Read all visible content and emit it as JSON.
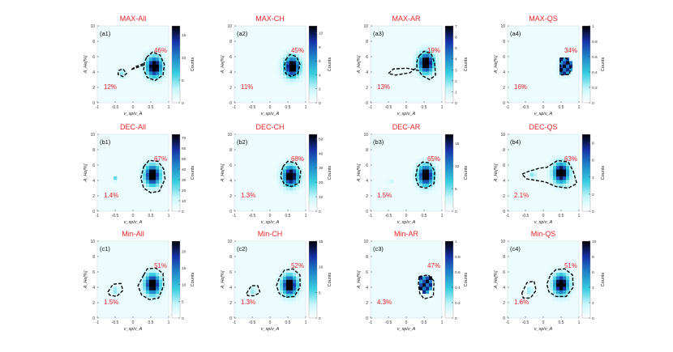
{
  "figure": {
    "colorbar_label": "Counts",
    "xlabel": "v_sp/v_A",
    "ylabel": "A_He[%]",
    "xticks": [
      "-1",
      "-0.5",
      "0",
      "0.5",
      "1"
    ],
    "yticks": [
      "0",
      "2",
      "4",
      "6",
      "8",
      "10"
    ],
    "xlim": [
      -1,
      1
    ],
    "ylim": [
      0,
      10
    ]
  },
  "chart_data": [
    {
      "type": "heatmap",
      "id": "a1",
      "panel_label": "(a1)",
      "title": "MAX-All",
      "colorbar_ticks": [
        "0",
        "5",
        "10",
        "15"
      ],
      "cbar_max": 17,
      "peak": {
        "x": 0.6,
        "y": 4.7
      },
      "core_peak_pct": "46%",
      "secondary_peak_pct": "12%",
      "secondary": {
        "x": -0.3,
        "y": 3.8
      },
      "core_contour": [
        [
          0.38,
          5.9
        ],
        [
          0.55,
          6.6
        ],
        [
          0.76,
          6.2
        ],
        [
          0.88,
          5.0
        ],
        [
          0.84,
          3.6
        ],
        [
          0.62,
          2.9
        ],
        [
          0.4,
          3.3
        ],
        [
          0.3,
          4.3
        ],
        [
          0.32,
          5.2
        ]
      ],
      "secondary_contour": [
        [
          -0.4,
          4.2
        ],
        [
          -0.28,
          4.4
        ],
        [
          -0.18,
          3.8
        ],
        [
          -0.28,
          3.4
        ],
        [
          -0.42,
          3.7
        ]
      ],
      "rim_contour": [
        [
          0.3,
          4.9
        ],
        [
          0.12,
          4.6
        ],
        [
          -0.06,
          4.3
        ],
        [
          0.08,
          4.7
        ],
        [
          0.3,
          5.1
        ]
      ]
    },
    {
      "type": "heatmap",
      "id": "a2",
      "panel_label": "(a2)",
      "title": "MAX-CH",
      "colorbar_ticks": [
        "0",
        "2",
        "4",
        "6",
        "8",
        "10"
      ],
      "cbar_max": 11,
      "peak": {
        "x": 0.62,
        "y": 4.7
      },
      "core_peak_pct": "45%",
      "secondary_peak_pct": "11%",
      "core_contour": [
        [
          0.44,
          5.6
        ],
        [
          0.56,
          6.3
        ],
        [
          0.74,
          6.0
        ],
        [
          0.84,
          5.0
        ],
        [
          0.78,
          3.8
        ],
        [
          0.6,
          3.4
        ],
        [
          0.44,
          3.8
        ],
        [
          0.4,
          4.7
        ]
      ]
    },
    {
      "type": "heatmap",
      "id": "a3",
      "panel_label": "(a3)",
      "title": "MAX-AR",
      "colorbar_ticks": [
        "0",
        "1",
        "2",
        "3",
        "4",
        "5",
        "6",
        "7"
      ],
      "cbar_max": 7,
      "peak": {
        "x": 0.56,
        "y": 5.2
      },
      "core_peak_pct": "19%",
      "secondary_peak_pct": "13%",
      "core_contour": [
        [
          0.36,
          6.1
        ],
        [
          0.5,
          6.7
        ],
        [
          0.7,
          6.4
        ],
        [
          0.8,
          5.1
        ],
        [
          0.82,
          3.6
        ],
        [
          0.66,
          3.0
        ],
        [
          0.46,
          3.5
        ],
        [
          0.34,
          4.2
        ],
        [
          0.02,
          4.5
        ],
        [
          -0.36,
          4.4
        ],
        [
          -0.5,
          3.8
        ],
        [
          -0.3,
          3.6
        ],
        [
          0.1,
          3.9
        ],
        [
          0.3,
          4.6
        ],
        [
          0.3,
          5.4
        ]
      ]
    },
    {
      "type": "heatmap",
      "id": "a4",
      "panel_label": "(a4)",
      "title": "MAX-QS",
      "colorbar_ticks": [
        "0",
        "0.2",
        "0.4",
        "0.6",
        "0.8",
        "1"
      ],
      "cbar_max": 1,
      "peak": {
        "x": 0.62,
        "y": 4.7
      },
      "core_peak_pct": "34%",
      "secondary_peak_pct": "16%",
      "blocky": true,
      "core_contour": [
        [
          0.48,
          5.8
        ],
        [
          0.66,
          5.8
        ],
        [
          0.76,
          4.7
        ],
        [
          0.74,
          3.7
        ],
        [
          0.52,
          3.6
        ],
        [
          0.48,
          4.6
        ]
      ]
    },
    {
      "type": "heatmap",
      "id": "b1",
      "panel_label": "(b1)",
      "title": "DEC-All",
      "colorbar_ticks": [
        "0",
        "10",
        "20",
        "30",
        "40",
        "50",
        "60",
        "70"
      ],
      "cbar_max": 73,
      "peak": {
        "x": 0.55,
        "y": 4.7
      },
      "core_peak_pct": "67%",
      "secondary_peak_pct": "1.4%",
      "core_contour": [
        [
          0.3,
          5.8
        ],
        [
          0.45,
          6.6
        ],
        [
          0.7,
          6.5
        ],
        [
          0.86,
          5.5
        ],
        [
          0.9,
          4.2
        ],
        [
          0.74,
          2.6
        ],
        [
          0.5,
          2.4
        ],
        [
          0.3,
          3.0
        ],
        [
          0.22,
          4.3
        ]
      ],
      "speck": {
        "x": -0.52,
        "y": 4.2
      }
    },
    {
      "type": "heatmap",
      "id": "b2",
      "panel_label": "(b2)",
      "title": "DEC-CH",
      "colorbar_ticks": [
        "0",
        "10",
        "20",
        "30",
        "40",
        "50"
      ],
      "cbar_max": 53,
      "peak": {
        "x": 0.58,
        "y": 4.6
      },
      "core_peak_pct": "68%",
      "secondary_peak_pct": "1.3%",
      "core_contour": [
        [
          0.36,
          5.8
        ],
        [
          0.5,
          6.5
        ],
        [
          0.72,
          6.3
        ],
        [
          0.86,
          5.2
        ],
        [
          0.82,
          3.7
        ],
        [
          0.6,
          3.2
        ],
        [
          0.4,
          3.5
        ],
        [
          0.3,
          4.5
        ]
      ]
    },
    {
      "type": "heatmap",
      "id": "b3",
      "panel_label": "(b3)",
      "title": "DEC-AR",
      "colorbar_ticks": [
        "0",
        "5",
        "10",
        "15"
      ],
      "cbar_max": 17,
      "peak": {
        "x": 0.55,
        "y": 4.7
      },
      "core_peak_pct": "65%",
      "secondary_peak_pct": "1.5%",
      "core_contour": [
        [
          0.32,
          5.8
        ],
        [
          0.46,
          6.4
        ],
        [
          0.66,
          6.3
        ],
        [
          0.8,
          5.2
        ],
        [
          0.78,
          3.6
        ],
        [
          0.56,
          3.0
        ],
        [
          0.36,
          3.2
        ],
        [
          0.26,
          4.4
        ]
      ],
      "speck": {
        "x": -0.45,
        "y": 3.8
      }
    },
    {
      "type": "heatmap",
      "id": "b4",
      "panel_label": "(b4)",
      "title": "DEC-QS",
      "colorbar_ticks": [
        "0",
        "2",
        "4",
        "6",
        "8"
      ],
      "cbar_max": 9,
      "peak": {
        "x": 0.5,
        "y": 5.0
      },
      "core_peak_pct": "63%",
      "secondary_peak_pct": "2.1%",
      "secondary": {
        "x": -0.3,
        "y": 4.8
      },
      "core_contour": [
        [
          0.2,
          6.0
        ],
        [
          0.4,
          6.6
        ],
        [
          0.7,
          6.4
        ],
        [
          0.84,
          5.2
        ],
        [
          0.94,
          3.6
        ],
        [
          0.7,
          3.0
        ],
        [
          0.36,
          3.2
        ],
        [
          0.06,
          3.8
        ],
        [
          -0.2,
          4.0
        ],
        [
          -0.46,
          4.2
        ],
        [
          -0.6,
          4.8
        ],
        [
          -0.4,
          5.2
        ],
        [
          -0.1,
          5.6
        ],
        [
          0.1,
          5.7
        ]
      ]
    },
    {
      "type": "heatmap",
      "id": "c1",
      "panel_label": "(c1)",
      "title": "Min-All",
      "colorbar_ticks": [
        "0",
        "5",
        "10",
        "15",
        "20"
      ],
      "cbar_max": 23,
      "peak": {
        "x": 0.55,
        "y": 4.4
      },
      "core_peak_pct": "51%",
      "secondary_peak_pct": "1.5%",
      "secondary": {
        "x": -0.5,
        "y": 3.6
      },
      "core_contour": [
        [
          0.3,
          5.6
        ],
        [
          0.4,
          6.4
        ],
        [
          0.64,
          6.5
        ],
        [
          0.84,
          5.8
        ],
        [
          0.86,
          4.2
        ],
        [
          0.72,
          2.6
        ],
        [
          0.46,
          2.4
        ],
        [
          0.24,
          3.0
        ],
        [
          0.14,
          4.2
        ]
      ],
      "secondary_contour": [
        [
          -0.7,
          3.4
        ],
        [
          -0.56,
          4.4
        ],
        [
          -0.34,
          4.5
        ],
        [
          -0.28,
          3.6
        ],
        [
          -0.46,
          2.8
        ],
        [
          -0.66,
          3.0
        ]
      ]
    },
    {
      "type": "heatmap",
      "id": "c2",
      "panel_label": "(c2)",
      "title": "Min-CH",
      "colorbar_ticks": [
        "0",
        "5",
        "10",
        "15"
      ],
      "cbar_max": 15,
      "peak": {
        "x": 0.55,
        "y": 4.3
      },
      "core_peak_pct": "52%",
      "secondary_peak_pct": "1.3%",
      "secondary": {
        "x": -0.48,
        "y": 3.5
      },
      "core_contour": [
        [
          0.28,
          5.4
        ],
        [
          0.4,
          6.2
        ],
        [
          0.64,
          6.4
        ],
        [
          0.84,
          5.6
        ],
        [
          0.84,
          4.0
        ],
        [
          0.68,
          2.8
        ],
        [
          0.44,
          2.7
        ],
        [
          0.26,
          3.2
        ],
        [
          0.18,
          4.2
        ]
      ],
      "secondary_contour": [
        [
          -0.66,
          3.2
        ],
        [
          -0.52,
          4.2
        ],
        [
          -0.34,
          4.2
        ],
        [
          -0.28,
          3.3
        ],
        [
          -0.44,
          2.9
        ],
        [
          -0.62,
          2.9
        ]
      ]
    },
    {
      "type": "heatmap",
      "id": "c3",
      "panel_label": "(c3)",
      "title": "Min-AR",
      "colorbar_ticks": [
        "0",
        "0.2",
        "0.4",
        "0.6",
        "0.8",
        "1"
      ],
      "cbar_max": 1,
      "peak": {
        "x": 0.55,
        "y": 4.4
      },
      "core_peak_pct": "47%",
      "secondary_peak_pct": "4.3%",
      "blocky": true,
      "core_contour": [
        [
          0.36,
          5.4
        ],
        [
          0.62,
          5.6
        ],
        [
          0.78,
          4.8
        ],
        [
          0.76,
          2.8
        ],
        [
          0.5,
          2.5
        ],
        [
          0.38,
          3.2
        ],
        [
          0.34,
          4.4
        ]
      ]
    },
    {
      "type": "heatmap",
      "id": "c4",
      "panel_label": "(c4)",
      "title": "Min-QS",
      "colorbar_ticks": [
        "0",
        "2",
        "4",
        "6",
        "8",
        "10"
      ],
      "cbar_max": 10,
      "peak": {
        "x": 0.5,
        "y": 4.4
      },
      "core_peak_pct": "51%",
      "secondary_peak_pct": "1.6%",
      "secondary": {
        "x": -0.38,
        "y": 3.6
      },
      "core_contour": [
        [
          0.2,
          5.6
        ],
        [
          0.36,
          6.3
        ],
        [
          0.6,
          6.4
        ],
        [
          0.82,
          5.6
        ],
        [
          0.84,
          4.0
        ],
        [
          0.64,
          2.8
        ],
        [
          0.36,
          2.8
        ],
        [
          0.16,
          3.4
        ],
        [
          0.1,
          4.4
        ]
      ],
      "secondary_contour": [
        [
          -0.6,
          3.2
        ],
        [
          -0.46,
          4.6
        ],
        [
          -0.26,
          4.8
        ],
        [
          -0.2,
          3.6
        ],
        [
          -0.36,
          2.6
        ],
        [
          -0.56,
          2.6
        ]
      ]
    }
  ]
}
